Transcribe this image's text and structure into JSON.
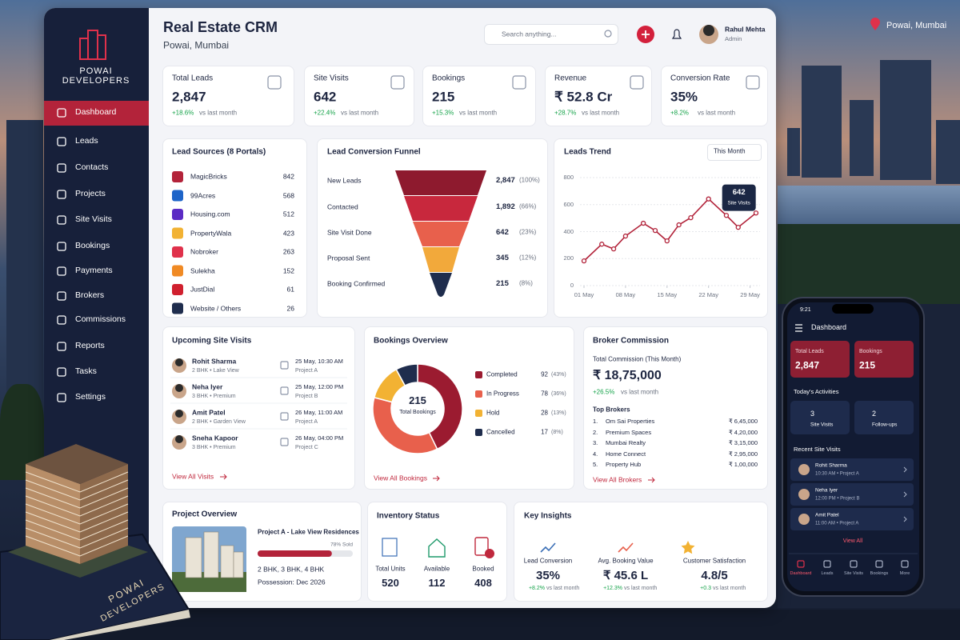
{
  "location": "Powai, Mumbai",
  "brand": {
    "line1": "POWAI",
    "line2": "DEVELOPERS"
  },
  "sidebar": [
    "Dashboard",
    "Leads",
    "Contacts",
    "Projects",
    "Site Visits",
    "Bookings",
    "Payments",
    "Brokers",
    "Commissions",
    "Reports",
    "Tasks",
    "Settings"
  ],
  "header": {
    "title": "Real Estate CRM",
    "subtitle": "Powai, Mumbai",
    "search": "Search anything...",
    "user_name": "Rahul Mehta",
    "user_role": "Admin"
  },
  "kpis": [
    {
      "label": "Total Leads",
      "value": "2,847",
      "change": "+18.6%",
      "note": "vs last month"
    },
    {
      "label": "Site Visits",
      "value": "642",
      "change": "+22.4%",
      "note": "vs last month"
    },
    {
      "label": "Bookings",
      "value": "215",
      "change": "+15.3%",
      "note": "vs last month"
    },
    {
      "label": "Revenue",
      "value": "₹ 52.8 Cr",
      "change": "+28.7%",
      "note": "vs last month"
    },
    {
      "label": "Conversion Rate",
      "value": "35%",
      "change": "+8.2%",
      "note": "vs last month"
    }
  ],
  "lead_sources": {
    "title": "Lead Sources (8 Portals)",
    "rows": [
      {
        "name": "MagicBricks",
        "count": "842"
      },
      {
        "name": "99Acres",
        "count": "568"
      },
      {
        "name": "Housing.com",
        "count": "512"
      },
      {
        "name": "PropertyWala",
        "count": "423"
      },
      {
        "name": "Nobroker",
        "count": "263"
      },
      {
        "name": "Sulekha",
        "count": "152"
      },
      {
        "name": "JustDial",
        "count": "61"
      },
      {
        "name": "Website / Others",
        "count": "26"
      }
    ]
  },
  "funnel": {
    "title": "Lead Conversion Funnel",
    "stages": [
      {
        "name": "New Leads",
        "count": "2,847",
        "pct": "(100%)"
      },
      {
        "name": "Contacted",
        "count": "1,892",
        "pct": "(66%)"
      },
      {
        "name": "Site Visit Done",
        "count": "642",
        "pct": "(23%)"
      },
      {
        "name": "Proposal Sent",
        "count": "345",
        "pct": "(12%)"
      },
      {
        "name": "Booking Confirmed",
        "count": "215",
        "pct": "(8%)"
      }
    ]
  },
  "leads_trend": {
    "type": "line",
    "title": "Leads Trend",
    "period": "This Month",
    "x": [
      1,
      4,
      6,
      8,
      11,
      13,
      15,
      17,
      19,
      22,
      25,
      27,
      30
    ],
    "values": [
      183,
      307,
      272,
      367,
      462,
      408,
      331,
      450,
      503,
      642,
      520,
      432,
      538
    ],
    "color": "#b2233a",
    "xlim": [
      1,
      30
    ],
    "ylim": [
      0,
      800
    ],
    "yticks": [
      0,
      200,
      400,
      600,
      800
    ],
    "xticks": [
      {
        "value": 1,
        "label": "01 May"
      },
      {
        "value": 8,
        "label": "08 May"
      },
      {
        "value": 15,
        "label": "15 May"
      },
      {
        "value": 22,
        "label": "22 May"
      },
      {
        "value": 29,
        "label": "29 May"
      }
    ],
    "grid": true,
    "tooltip_label": "Site Visits"
  },
  "site_visits": {
    "title": "Upcoming Site Visits",
    "rows": [
      {
        "name": "Rohit Sharma",
        "detail": "2 BHK • Lake View",
        "date": "25 May, 10:30 AM",
        "project": "Project A"
      },
      {
        "name": "Neha Iyer",
        "detail": "3 BHK • Premium",
        "date": "25 May, 12:00 PM",
        "project": "Project B"
      },
      {
        "name": "Amit Patel",
        "detail": "2 BHK • Garden View",
        "date": "26 May, 11:00 AM",
        "project": "Project A"
      },
      {
        "name": "Sneha Kapoor",
        "detail": "3 BHK • Premium",
        "date": "26 May, 04:00 PM",
        "project": "Project C"
      }
    ],
    "link": "View All Visits"
  },
  "bookings_overview": {
    "type": "donut",
    "title": "Bookings Overview",
    "total": "215",
    "total_label": "Total Bookings",
    "segments": [
      {
        "name": "Completed",
        "value": 92,
        "pct": "(43%)",
        "color": "#9b1b30"
      },
      {
        "name": "In Progress",
        "value": 78,
        "pct": "(36%)",
        "color": "#e8604c"
      },
      {
        "name": "Hold",
        "value": 28,
        "pct": "(13%)",
        "color": "#f2b233"
      },
      {
        "name": "Cancelled",
        "value": 17,
        "pct": "(8%)",
        "color": "#1f2d4d"
      }
    ],
    "link": "View All Bookings"
  },
  "broker_commission": {
    "title": "Broker Commission",
    "total_label": "Total Commission (This Month)",
    "total": "₹ 18,75,000",
    "change": "+26.5%",
    "note": "vs last month",
    "top_title": "Top Brokers",
    "rows": [
      {
        "rank": "1.",
        "name": "Om Sai Properties",
        "amount": "₹ 6,45,000"
      },
      {
        "rank": "2.",
        "name": "Premium Spaces",
        "amount": "₹ 4,20,000"
      },
      {
        "rank": "3.",
        "name": "Mumbai Realty",
        "amount": "₹ 3,15,000"
      },
      {
        "rank": "4.",
        "name": "Home Connect",
        "amount": "₹ 2,95,000"
      },
      {
        "rank": "5.",
        "name": "Property Hub",
        "amount": "₹ 1,00,000"
      }
    ],
    "link": "View All Brokers"
  },
  "project_overview": {
    "title": "Project Overview",
    "name": "Project A - Lake View Residences",
    "sold": 78,
    "sold_label": "78% Sold",
    "config": "2 BHK, 3 BHK, 4 BHK",
    "possession": "Possession: Dec 2026"
  },
  "inventory": {
    "title": "Inventory Status",
    "items": [
      {
        "label": "Total Units",
        "value": "520"
      },
      {
        "label": "Available",
        "value": "112"
      },
      {
        "label": "Booked",
        "value": "408"
      }
    ]
  },
  "insights": {
    "title": "Key Insights",
    "items": [
      {
        "label": "Lead Conversion",
        "value": "35%",
        "change": "+8.2%",
        "note": "vs last month"
      },
      {
        "label": "Avg. Booking Value",
        "value": "₹ 45.6 L",
        "change": "+12.3%",
        "note": "vs last month"
      },
      {
        "label": "Customer Satisfaction",
        "value": "4.8/5",
        "change": "+0.3",
        "note": "vs last month"
      }
    ]
  },
  "phone": {
    "time": "9:21",
    "title": "Dashboard",
    "stats": [
      {
        "label": "Total Leads",
        "value": "2,847"
      },
      {
        "label": "Bookings",
        "value": "215"
      }
    ],
    "activities_title": "Today's Activities",
    "activities": [
      {
        "count": "3",
        "label": "Site Visits"
      },
      {
        "count": "2",
        "label": "Follow-ups"
      }
    ],
    "recent_title": "Recent Site Visits",
    "recent": [
      {
        "name": "Rohit Sharma",
        "detail": "10:30 AM • Project A"
      },
      {
        "name": "Neha Iyer",
        "detail": "12:00 PM • Project B"
      },
      {
        "name": "Amit Patel",
        "detail": "11:00 AM • Project A"
      }
    ],
    "link": "View All",
    "tabs": [
      "Dashboard",
      "Leads",
      "Site Visits",
      "Bookings",
      "More"
    ]
  },
  "book": {
    "line1": "POWAI",
    "line2": "DEVELOPERS"
  }
}
